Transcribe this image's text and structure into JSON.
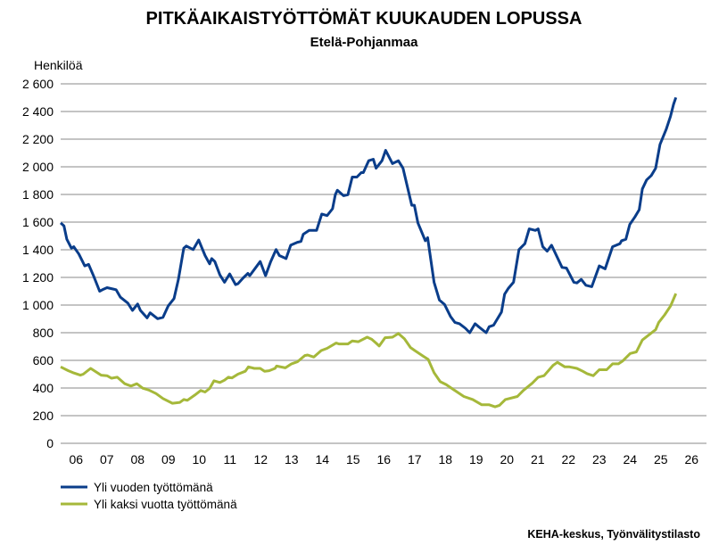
{
  "chart_data": {
    "type": "line",
    "title": "PITKÄAIKAISTYÖTTÖMÄT KUUKAUDEN LOPUSSA",
    "subtitle": "Etelä-Pohjanmaa",
    "ylabel": "Henkilöä",
    "xlabel": "",
    "x_unit": "months since January 2006",
    "ylim": [
      0,
      2600
    ],
    "yticks": [
      0,
      200,
      400,
      600,
      800,
      1000,
      1200,
      1400,
      1600,
      1800,
      2000,
      2200,
      2400,
      2600
    ],
    "ytick_labels": [
      "0",
      "200",
      "400",
      "600",
      "800",
      "1 000",
      "1 200",
      "1 400",
      "1 600",
      "1 800",
      "2 000",
      "2 200",
      "2 400",
      "2 600"
    ],
    "xtick_labels": [
      "06",
      "07",
      "08",
      "09",
      "10",
      "11",
      "12",
      "13",
      "14",
      "15",
      "16",
      "17",
      "18",
      "19",
      "20",
      "21",
      "22",
      "23",
      "24",
      "25",
      "26"
    ],
    "grid": true,
    "legend_position": "bottom-left",
    "source": "KEHA-keskus, Työnvälitystilasto",
    "series": [
      {
        "name": "Yli vuoden työttömänä",
        "color": "#0a3d8a",
        "points": [
          [
            0,
            1594
          ],
          [
            1.3,
            1573
          ],
          [
            2.4,
            1476
          ],
          [
            4.2,
            1411
          ],
          [
            5.1,
            1422
          ],
          [
            7.1,
            1369
          ],
          [
            9.4,
            1283
          ],
          [
            10.9,
            1294
          ],
          [
            12.9,
            1208
          ],
          [
            15.2,
            1100
          ],
          [
            16.3,
            1111
          ],
          [
            18.1,
            1126
          ],
          [
            21.6,
            1111
          ],
          [
            23.3,
            1057
          ],
          [
            26.2,
            1014
          ],
          [
            28,
            961
          ],
          [
            30,
            1008
          ],
          [
            31.1,
            961
          ],
          [
            33.7,
            907
          ],
          [
            34.9,
            944
          ],
          [
            37.8,
            901
          ],
          [
            39.9,
            911
          ],
          [
            41.9,
            993
          ],
          [
            44.2,
            1047
          ],
          [
            45.9,
            1186
          ],
          [
            48,
            1411
          ],
          [
            49,
            1427
          ],
          [
            51.7,
            1401
          ],
          [
            53.8,
            1470
          ],
          [
            56.3,
            1358
          ],
          [
            58.1,
            1298
          ],
          [
            58.9,
            1336
          ],
          [
            60.1,
            1315
          ],
          [
            62.1,
            1218
          ],
          [
            63.9,
            1165
          ],
          [
            65.9,
            1225
          ],
          [
            68.2,
            1148
          ],
          [
            69.1,
            1154
          ],
          [
            71.2,
            1197
          ],
          [
            73,
            1229
          ],
          [
            73.7,
            1212
          ],
          [
            76.1,
            1272
          ],
          [
            77.8,
            1315
          ],
          [
            79.9,
            1212
          ],
          [
            81.9,
            1315
          ],
          [
            84,
            1401
          ],
          [
            85.3,
            1358
          ],
          [
            87.9,
            1336
          ],
          [
            89.7,
            1433
          ],
          [
            92.3,
            1454
          ],
          [
            93.7,
            1460
          ],
          [
            94.6,
            1512
          ],
          [
            96.9,
            1540
          ],
          [
            99.8,
            1540
          ],
          [
            101.8,
            1658
          ],
          [
            103.9,
            1647
          ],
          [
            106,
            1697
          ],
          [
            107.1,
            1798
          ],
          [
            107.9,
            1830
          ],
          [
            110.3,
            1791
          ],
          [
            112,
            1798
          ],
          [
            113.7,
            1926
          ],
          [
            115.5,
            1926
          ],
          [
            117.2,
            1958
          ],
          [
            118,
            1958
          ],
          [
            120.1,
            2044
          ],
          [
            121.9,
            2055
          ],
          [
            123,
            1990
          ],
          [
            125.3,
            2044
          ],
          [
            126.7,
            2119
          ],
          [
            129.4,
            2023
          ],
          [
            131.7,
            2044
          ],
          [
            133.5,
            1990
          ],
          [
            136.9,
            1722
          ],
          [
            137.9,
            1722
          ],
          [
            139.3,
            1594
          ],
          [
            142.2,
            1465
          ],
          [
            143.1,
            1487
          ],
          [
            145.6,
            1165
          ],
          [
            147.7,
            1036
          ],
          [
            149.7,
            1004
          ],
          [
            152,
            918
          ],
          [
            153.7,
            875
          ],
          [
            155.5,
            865
          ],
          [
            157.8,
            832
          ],
          [
            159.5,
            800
          ],
          [
            161.6,
            865
          ],
          [
            163,
            843
          ],
          [
            165.9,
            800
          ],
          [
            167.1,
            843
          ],
          [
            168.8,
            854
          ],
          [
            171.9,
            950
          ],
          [
            173.1,
            1079
          ],
          [
            174.6,
            1122
          ],
          [
            176.6,
            1165
          ],
          [
            178.7,
            1401
          ],
          [
            181,
            1444
          ],
          [
            182.7,
            1551
          ],
          [
            185.1,
            1540
          ],
          [
            186.2,
            1551
          ],
          [
            188,
            1422
          ],
          [
            189.7,
            1390
          ],
          [
            191.4,
            1433
          ],
          [
            195.5,
            1272
          ],
          [
            197.2,
            1268
          ],
          [
            200.1,
            1165
          ],
          [
            201.3,
            1160
          ],
          [
            203,
            1186
          ],
          [
            204.8,
            1143
          ],
          [
            207.1,
            1133
          ],
          [
            210,
            1283
          ],
          [
            212.3,
            1262
          ],
          [
            215.2,
            1422
          ],
          [
            218.1,
            1444
          ],
          [
            218.7,
            1465
          ],
          [
            220.4,
            1476
          ],
          [
            221.9,
            1583
          ],
          [
            223.9,
            1637
          ],
          [
            225.6,
            1690
          ],
          [
            226.8,
            1840
          ],
          [
            228.5,
            1905
          ],
          [
            230.3,
            1937
          ],
          [
            232,
            1990
          ],
          [
            233.7,
            2162
          ],
          [
            236.1,
            2270
          ],
          [
            237.8,
            2366
          ],
          [
            239,
            2452
          ],
          [
            239.9,
            2501
          ]
        ]
      },
      {
        "name": "Yli kaksi vuotta työttömänä",
        "color": "#a5b83a",
        "points": [
          [
            0,
            553
          ],
          [
            3,
            525
          ],
          [
            4.8,
            511
          ],
          [
            7.7,
            493
          ],
          [
            8.8,
            500
          ],
          [
            11.7,
            542
          ],
          [
            15.8,
            493
          ],
          [
            18.1,
            489
          ],
          [
            19.8,
            471
          ],
          [
            22.1,
            478
          ],
          [
            25,
            431
          ],
          [
            27.4,
            414
          ],
          [
            29.7,
            431
          ],
          [
            32,
            399
          ],
          [
            34.3,
            386
          ],
          [
            37.2,
            360
          ],
          [
            39.9,
            324
          ],
          [
            43.6,
            290
          ],
          [
            46.5,
            296
          ],
          [
            48,
            317
          ],
          [
            49.4,
            311
          ],
          [
            52.3,
            349
          ],
          [
            54.6,
            382
          ],
          [
            56.3,
            371
          ],
          [
            58.1,
            397
          ],
          [
            59.8,
            452
          ],
          [
            62.1,
            440
          ],
          [
            63.9,
            457
          ],
          [
            65.4,
            478
          ],
          [
            66.8,
            473
          ],
          [
            69.1,
            500
          ],
          [
            72,
            521
          ],
          [
            73.2,
            553
          ],
          [
            75.5,
            542
          ],
          [
            77.8,
            542
          ],
          [
            79.5,
            521
          ],
          [
            81.3,
            525
          ],
          [
            83.6,
            542
          ],
          [
            84.2,
            559
          ],
          [
            87.6,
            546
          ],
          [
            90,
            575
          ],
          [
            92.3,
            590
          ],
          [
            95.2,
            635
          ],
          [
            96.3,
            639
          ],
          [
            98.7,
            624
          ],
          [
            101.6,
            671
          ],
          [
            103.9,
            687
          ],
          [
            107.4,
            725
          ],
          [
            108.5,
            719
          ],
          [
            112,
            719
          ],
          [
            113.7,
            740
          ],
          [
            116.1,
            735
          ],
          [
            119.5,
            768
          ],
          [
            121.3,
            752
          ],
          [
            123,
            725
          ],
          [
            124.2,
            704
          ],
          [
            126.5,
            764
          ],
          [
            129.4,
            768
          ],
          [
            131.7,
            794
          ],
          [
            134,
            757
          ],
          [
            136.4,
            693
          ],
          [
            138.1,
            671
          ],
          [
            141.6,
            628
          ],
          [
            143.3,
            607
          ],
          [
            145.6,
            511
          ],
          [
            148,
            446
          ],
          [
            150.3,
            425
          ],
          [
            153.7,
            382
          ],
          [
            157.2,
            339
          ],
          [
            160.7,
            317
          ],
          [
            164.2,
            279
          ],
          [
            167.1,
            279
          ],
          [
            169.4,
            264
          ],
          [
            171.1,
            275
          ],
          [
            173.4,
            317
          ],
          [
            178.1,
            339
          ],
          [
            180.4,
            382
          ],
          [
            183.9,
            435
          ],
          [
            186.2,
            478
          ],
          [
            188.5,
            489
          ],
          [
            192,
            564
          ],
          [
            193.7,
            586
          ],
          [
            196.6,
            553
          ],
          [
            198.4,
            553
          ],
          [
            201.3,
            542
          ],
          [
            203.6,
            521
          ],
          [
            205.3,
            504
          ],
          [
            207.7,
            489
          ],
          [
            210,
            532
          ],
          [
            212.9,
            532
          ],
          [
            215.2,
            575
          ],
          [
            217.5,
            575
          ],
          [
            219.2,
            596
          ],
          [
            222.1,
            650
          ],
          [
            224.5,
            661
          ],
          [
            226.8,
            747
          ],
          [
            229.7,
            789
          ],
          [
            232,
            822
          ],
          [
            233.2,
            875
          ],
          [
            235.5,
            929
          ],
          [
            237.8,
            993
          ],
          [
            239.9,
            1083
          ]
        ]
      }
    ]
  }
}
